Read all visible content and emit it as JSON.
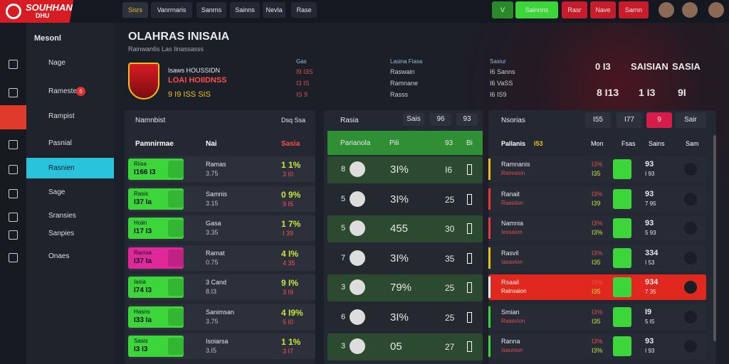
{
  "topbar": {
    "logo": "SOUHHAN",
    "logo_sub": "DHU",
    "tabs": [
      "Sisrs",
      "Vanrrnaris",
      "Sanrns",
      "Sainns",
      "Nevla",
      "Rase"
    ],
    "actions": [
      "V",
      "Sainnns",
      "Rasr",
      "Nave",
      "Sarnn"
    ]
  },
  "sidebar": {
    "title": "Mesonl",
    "items": [
      {
        "label": "Nage"
      },
      {
        "label": "Rameste",
        "badge": "6"
      },
      {
        "label": "Rampist"
      },
      {
        "label": "Pasnial"
      },
      {
        "label": "Rasnien"
      },
      {
        "label": "Sage"
      },
      {
        "label": "Sransies"
      },
      {
        "label": "Sanpies"
      },
      {
        "label": "Onaes"
      }
    ]
  },
  "header": {
    "title": "OLAHRAS INISAIA",
    "subtitle": "Rainwan6s Las Iinassasss"
  },
  "team": {
    "label": "Isaws HOUSSIDN",
    "name": "LOAI HOIIDNSS",
    "stats": "9 I9 ISS SIS"
  },
  "stats": [
    {
      "head": "Gas",
      "rows": [
        "I9 I3S",
        "I3 IS",
        "IS 9"
      ]
    },
    {
      "head": "Lasina Fiasa",
      "rows": [
        "Raswain",
        "Ramnane",
        "Rasss"
      ]
    },
    {
      "head": "Sasiur",
      "rows": [
        "I6 Sanns",
        "I6 VaSS",
        "I6 IS9"
      ]
    }
  ],
  "scoreboard": {
    "line1": [
      "0 I3",
      "SAISIAN",
      "SASIA"
    ],
    "line2": [
      "8 I13",
      "1 I3",
      "9I"
    ]
  },
  "panel1": {
    "title": "Namnbist",
    "tag": "Dsq Ssa",
    "columns": [
      "Pamnirmae",
      "Nai",
      "Sasia"
    ],
    "rows": [
      {
        "box_label": "Riisa",
        "box_value": "I166 I3",
        "color": "#3dd63a",
        "name": "Ramas",
        "sub": "3.75",
        "value": "1 1%",
        "value_sub": "3 I0"
      },
      {
        "box_label": "Rasis",
        "box_value": "I37 Ia",
        "color": "#3dd63a",
        "name": "Samnis",
        "sub": "3.15",
        "value": "0 9%",
        "value_sub": "9 I5"
      },
      {
        "box_label": "Hoiin",
        "box_value": "I17 I3",
        "color": "#3dd63a",
        "name": "Gasa",
        "sub": "3.35",
        "value": "1 7%",
        "value_sub": "I 39"
      },
      {
        "box_label": "Ranisa",
        "box_value": "I37 Ia",
        "color": "#e0289a",
        "name": "Ramat",
        "sub": "0.75",
        "value": "4 I%",
        "value_sub": "4 35"
      },
      {
        "box_label": "Iasia",
        "box_value": "I74 I3",
        "color": "#3dd63a",
        "name": "3 Cand",
        "sub": "8.I3",
        "value": "9 I%",
        "value_sub": "3 I9"
      },
      {
        "box_label": "Hasns",
        "box_value": "I33 Ia",
        "color": "#3dd63a",
        "name": "Sanimsan",
        "sub": "3.75",
        "value": "4 I9%",
        "value_sub": "5 I0"
      },
      {
        "box_label": "Sasis",
        "box_value": "I3 I3",
        "color": "#3dd63a",
        "name": "Isoiarsa",
        "sub": "3.I5",
        "value": "1 1%",
        "value_sub": "3 I7"
      }
    ]
  },
  "panel2": {
    "title": "Rasia",
    "buttons": [
      "Sais",
      "96",
      "93"
    ],
    "columns": [
      "Parianola",
      "Pili",
      "93",
      "Bi"
    ],
    "rows": [
      {
        "rank": "8",
        "pct": "3I%",
        "num": "I6"
      },
      {
        "rank": "5",
        "pct": "3I%",
        "num": "25"
      },
      {
        "rank": "5",
        "pct": "455",
        "num": "30"
      },
      {
        "rank": "7",
        "pct": "3I%",
        "num": "35"
      },
      {
        "rank": "3",
        "pct": "79%",
        "num": "25"
      },
      {
        "rank": "6",
        "pct": "3I%",
        "num": "25"
      },
      {
        "rank": "3",
        "pct": "05",
        "num": "27"
      }
    ]
  },
  "panel3": {
    "title": "Nsorias",
    "buttons": [
      "I55",
      "I77",
      "9",
      "Sair"
    ],
    "columns": [
      "Pallanis",
      "I53",
      "Mon",
      "Fsas",
      "Sains",
      "Sam"
    ],
    "rows": [
      {
        "bar_color": "#e8c11c",
        "name": "Ramnanis",
        "sub": "Ranvsion",
        "pct": "I3%",
        "pct2": "I35",
        "value": "93",
        "value_sub": "I 93",
        "highlight": false
      },
      {
        "bar_color": "#e83a3a",
        "name": "Ranait",
        "sub": "Raasiion",
        "pct": "I3%",
        "pct2": "I39",
        "value": "93",
        "value_sub": "7 95",
        "highlight": false
      },
      {
        "bar_color": "#e83a3a",
        "name": "Namnia",
        "sub": "Iessaion",
        "pct": "I3%",
        "pct2": "I3%",
        "value": "93",
        "value_sub": "5 93",
        "highlight": false
      },
      {
        "bar_color": "#e8c11c",
        "name": "Rasvil",
        "sub": "Iasavion",
        "pct": "I3%",
        "pct2": "I35",
        "value": "334",
        "value_sub": "I 53",
        "highlight": false
      },
      {
        "bar_color": "#ffffff",
        "name": "Rsaail",
        "sub": "Rainsaion",
        "pct": "I3%",
        "pct2": "I35",
        "value": "934",
        "value_sub": "7 35",
        "highlight": true
      },
      {
        "bar_color": "#3dd63a",
        "name": "Smian",
        "sub": "Raasvion",
        "pct": "I3%",
        "pct2": "I35",
        "value": "I9",
        "value_sub": "5 I5",
        "highlight": false
      },
      {
        "bar_color": "#3dd63a",
        "name": "Ranna",
        "sub": "Isaunion",
        "pct": "I3%",
        "pct2": "I3%",
        "value": "93",
        "value_sub": "I 93",
        "highlight": false
      }
    ]
  }
}
